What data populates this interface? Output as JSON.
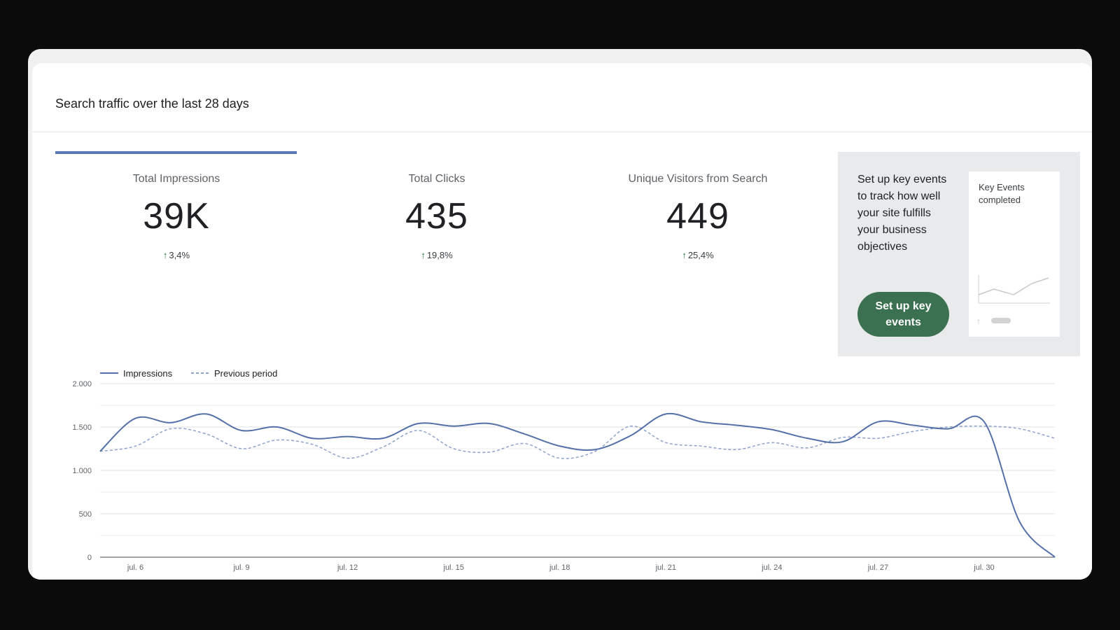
{
  "header": {
    "title": "Search traffic over the last 28 days"
  },
  "metrics": [
    {
      "label": "Total Impressions",
      "value": "39K",
      "change": "3,4%"
    },
    {
      "label": "Total Clicks",
      "value": "435",
      "change": "19,8%"
    },
    {
      "label": "Unique Visitors from Search",
      "value": "449",
      "change": "25,4%"
    }
  ],
  "promo": {
    "text": "Set up key events to track how well your site fulfills your business objectives",
    "button": "Set up key events",
    "preview_title": "Key Events completed"
  },
  "chart_data": {
    "type": "line",
    "categories": [
      null,
      "jul. 6",
      null,
      null,
      "jul. 9",
      null,
      null,
      "jul. 12",
      null,
      null,
      "jul. 15",
      null,
      null,
      "jul. 18",
      null,
      null,
      "jul. 21",
      null,
      null,
      "jul. 24",
      null,
      null,
      "jul. 27",
      null,
      null,
      "jul. 30",
      null,
      null
    ],
    "series": [
      {
        "name": "Impressions",
        "color": "#5470a8",
        "dash": "solid",
        "values": [
          1220,
          1600,
          1550,
          1650,
          1460,
          1500,
          1370,
          1390,
          1370,
          1540,
          1510,
          1540,
          1420,
          1280,
          1240,
          1400,
          1650,
          1560,
          1520,
          1470,
          1370,
          1330,
          1560,
          1520,
          1480,
          1560,
          410,
          0
        ]
      },
      {
        "name": "Previous period",
        "color": "#8ea2cb",
        "dash": "dashed",
        "values": [
          1220,
          1280,
          1480,
          1420,
          1250,
          1350,
          1300,
          1140,
          1270,
          1460,
          1250,
          1210,
          1310,
          1140,
          1220,
          1510,
          1320,
          1280,
          1240,
          1320,
          1260,
          1380,
          1370,
          1450,
          1500,
          1510,
          1480,
          1370
        ]
      }
    ],
    "ylim": [
      0,
      2000
    ],
    "yticks": [
      0,
      500,
      {
        "value": 1000,
        "label": "1.000"
      },
      {
        "value": 1500,
        "label": "1.500"
      },
      {
        "value": 2000,
        "label": "2.000"
      }
    ],
    "minor_yticks": [
      250,
      750,
      1250,
      1750
    ],
    "grid": true
  }
}
